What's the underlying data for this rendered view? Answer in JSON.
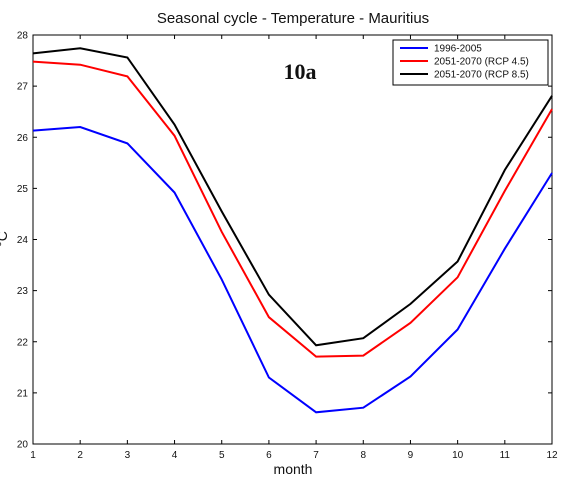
{
  "chart_data": {
    "type": "line",
    "title": "Seasonal cycle  - Temperature - Mauritius",
    "xlabel": "month",
    "ylabel": "°C",
    "annotation": "10a",
    "xlim": [
      1,
      12
    ],
    "ylim": [
      20,
      28
    ],
    "x": [
      1,
      2,
      3,
      4,
      5,
      6,
      7,
      8,
      9,
      10,
      11,
      12
    ],
    "xticks": [
      "1",
      "2",
      "3",
      "4",
      "5",
      "6",
      "7",
      "8",
      "9",
      "10",
      "11",
      "12"
    ],
    "yticks": [
      "20",
      "21",
      "22",
      "23",
      "24",
      "25",
      "26",
      "27",
      "28"
    ],
    "grid": false,
    "legend_position": "top-right",
    "series": [
      {
        "name": "1996-2005",
        "color": "#0000ff",
        "values": [
          26.13,
          26.2,
          25.88,
          24.92,
          23.22,
          21.3,
          20.62,
          20.71,
          21.32,
          22.24,
          23.82,
          25.3
        ]
      },
      {
        "name": "2051-2070 (RCP 4.5)",
        "color": "#ff0000",
        "values": [
          27.48,
          27.42,
          27.19,
          26.03,
          24.15,
          22.48,
          21.71,
          21.73,
          22.37,
          23.26,
          24.95,
          26.55
        ]
      },
      {
        "name": "2051-2070 (RCP 8.5)",
        "color": "#000000",
        "values": [
          27.64,
          27.74,
          27.56,
          26.25,
          24.55,
          22.92,
          21.93,
          22.07,
          22.74,
          23.57,
          25.36,
          26.81
        ]
      }
    ]
  }
}
